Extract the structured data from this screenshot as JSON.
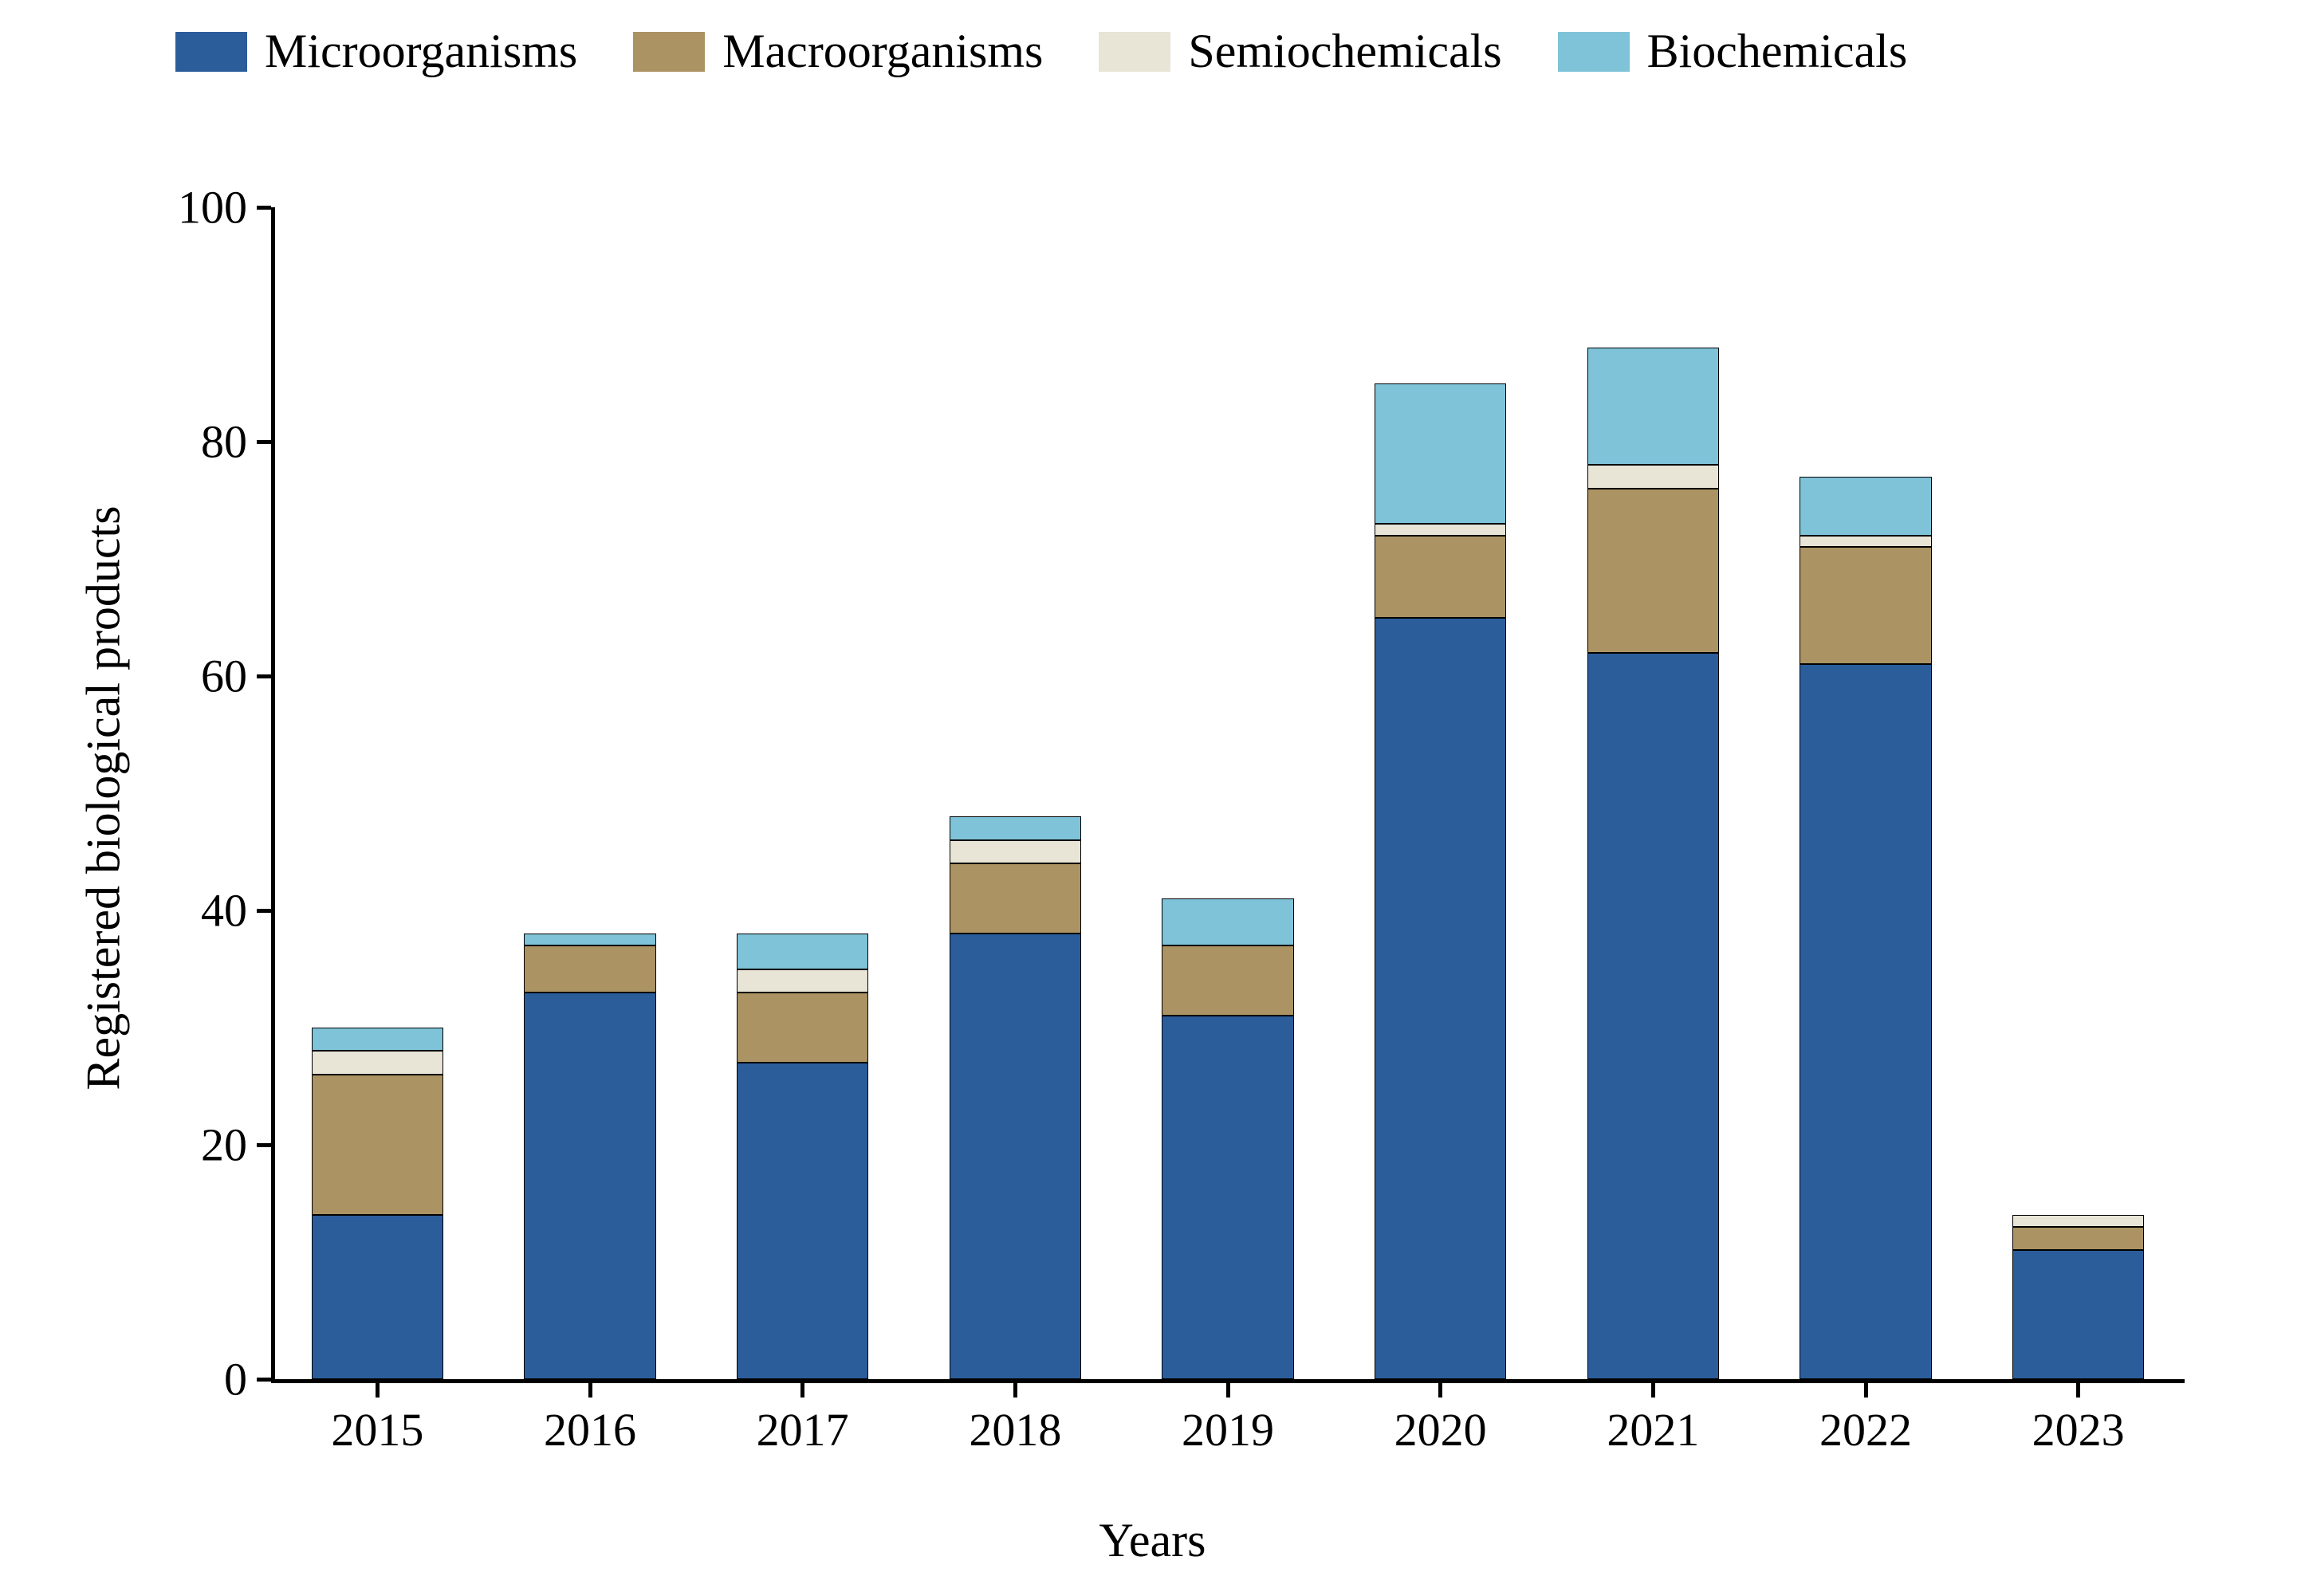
{
  "chart": {
    "type": "stacked-bar",
    "background_color": "#ffffff",
    "series": [
      {
        "key": "micro",
        "label": "Microorganisms",
        "color": "#2b5d9b"
      },
      {
        "key": "macro",
        "label": "Macroorganisms",
        "color": "#ab9363"
      },
      {
        "key": "semio",
        "label": "Semiochemicals",
        "color": "#e8e4d6"
      },
      {
        "key": "bioch",
        "label": "Biochemicals",
        "color": "#7fc3d9"
      }
    ],
    "categories": [
      "2015",
      "2016",
      "2017",
      "2018",
      "2019",
      "2020",
      "2021",
      "2022",
      "2023"
    ],
    "values": {
      "micro": [
        14,
        33,
        27,
        38,
        31,
        65,
        62,
        61,
        11
      ],
      "macro": [
        12,
        4,
        6,
        6,
        6,
        7,
        14,
        10,
        2
      ],
      "semio": [
        2,
        0,
        2,
        2,
        0,
        1,
        2,
        1,
        1
      ],
      "bioch": [
        2,
        1,
        3,
        2,
        4,
        12,
        10,
        5,
        0
      ]
    },
    "x_axis": {
      "label": "Years",
      "label_fontsize": 60,
      "tick_fontsize": 58
    },
    "y_axis": {
      "label": "Registered biological products",
      "label_fontsize": 60,
      "tick_fontsize": 58,
      "ylim": [
        0,
        100
      ],
      "yticks": [
        0,
        20,
        40,
        60,
        80,
        100
      ]
    },
    "bar_width_ratio": 0.62,
    "border_color": "#000000",
    "legend_fontsize": 60
  }
}
